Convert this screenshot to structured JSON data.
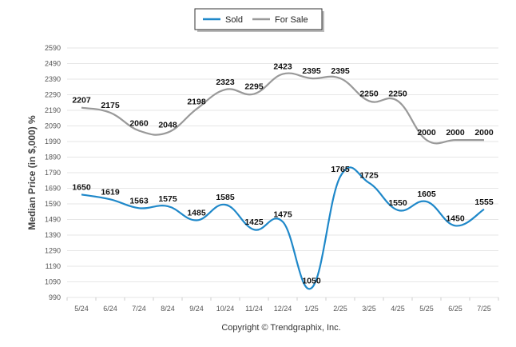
{
  "chart_data": {
    "type": "line",
    "categories": [
      "5/24",
      "6/24",
      "7/24",
      "8/24",
      "9/24",
      "10/24",
      "11/24",
      "12/24",
      "1/25",
      "2/25",
      "3/25",
      "4/25",
      "5/25",
      "6/25",
      "7/25"
    ],
    "series": [
      {
        "name": "Sold",
        "color": "#1f88c9",
        "values": [
          1650,
          1619,
          1563,
          1575,
          1485,
          1585,
          1425,
          1475,
          1050,
          1765,
          1725,
          1550,
          1605,
          1450,
          1555
        ],
        "labels": [
          "1650",
          "1619",
          "1563",
          "1575",
          "1485",
          "1585",
          "1425",
          "1475",
          "1050",
          "1765",
          "1725",
          "1550",
          "1605",
          "1450",
          "1555"
        ]
      },
      {
        "name": "For Sale",
        "color": "#999999",
        "values": [
          2207,
          2175,
          2060,
          2048,
          2198,
          2323,
          2295,
          2423,
          2395,
          2395,
          2250,
          2250,
          2000,
          2000,
          2000
        ],
        "labels": [
          "2207",
          "2175",
          "2060",
          "2048",
          "2198",
          "2323",
          "2295",
          "2423",
          "2395",
          "2395",
          "2250",
          "2250",
          "2000",
          "2000",
          "2000"
        ]
      }
    ],
    "ylim": [
      990,
      2590
    ],
    "yticks": [
      "990",
      "1090",
      "1190",
      "1290",
      "1390",
      "1490",
      "1590",
      "1690",
      "1790",
      "1890",
      "1990",
      "2090",
      "2190",
      "2290",
      "2390",
      "2490",
      "2590"
    ],
    "ylabel": "Median Price (in $,000) %",
    "xlabel": "",
    "grid": true,
    "legend_position": "top-center"
  },
  "footer": {
    "copyright": "Copyright © Trendgraphix, Inc."
  }
}
